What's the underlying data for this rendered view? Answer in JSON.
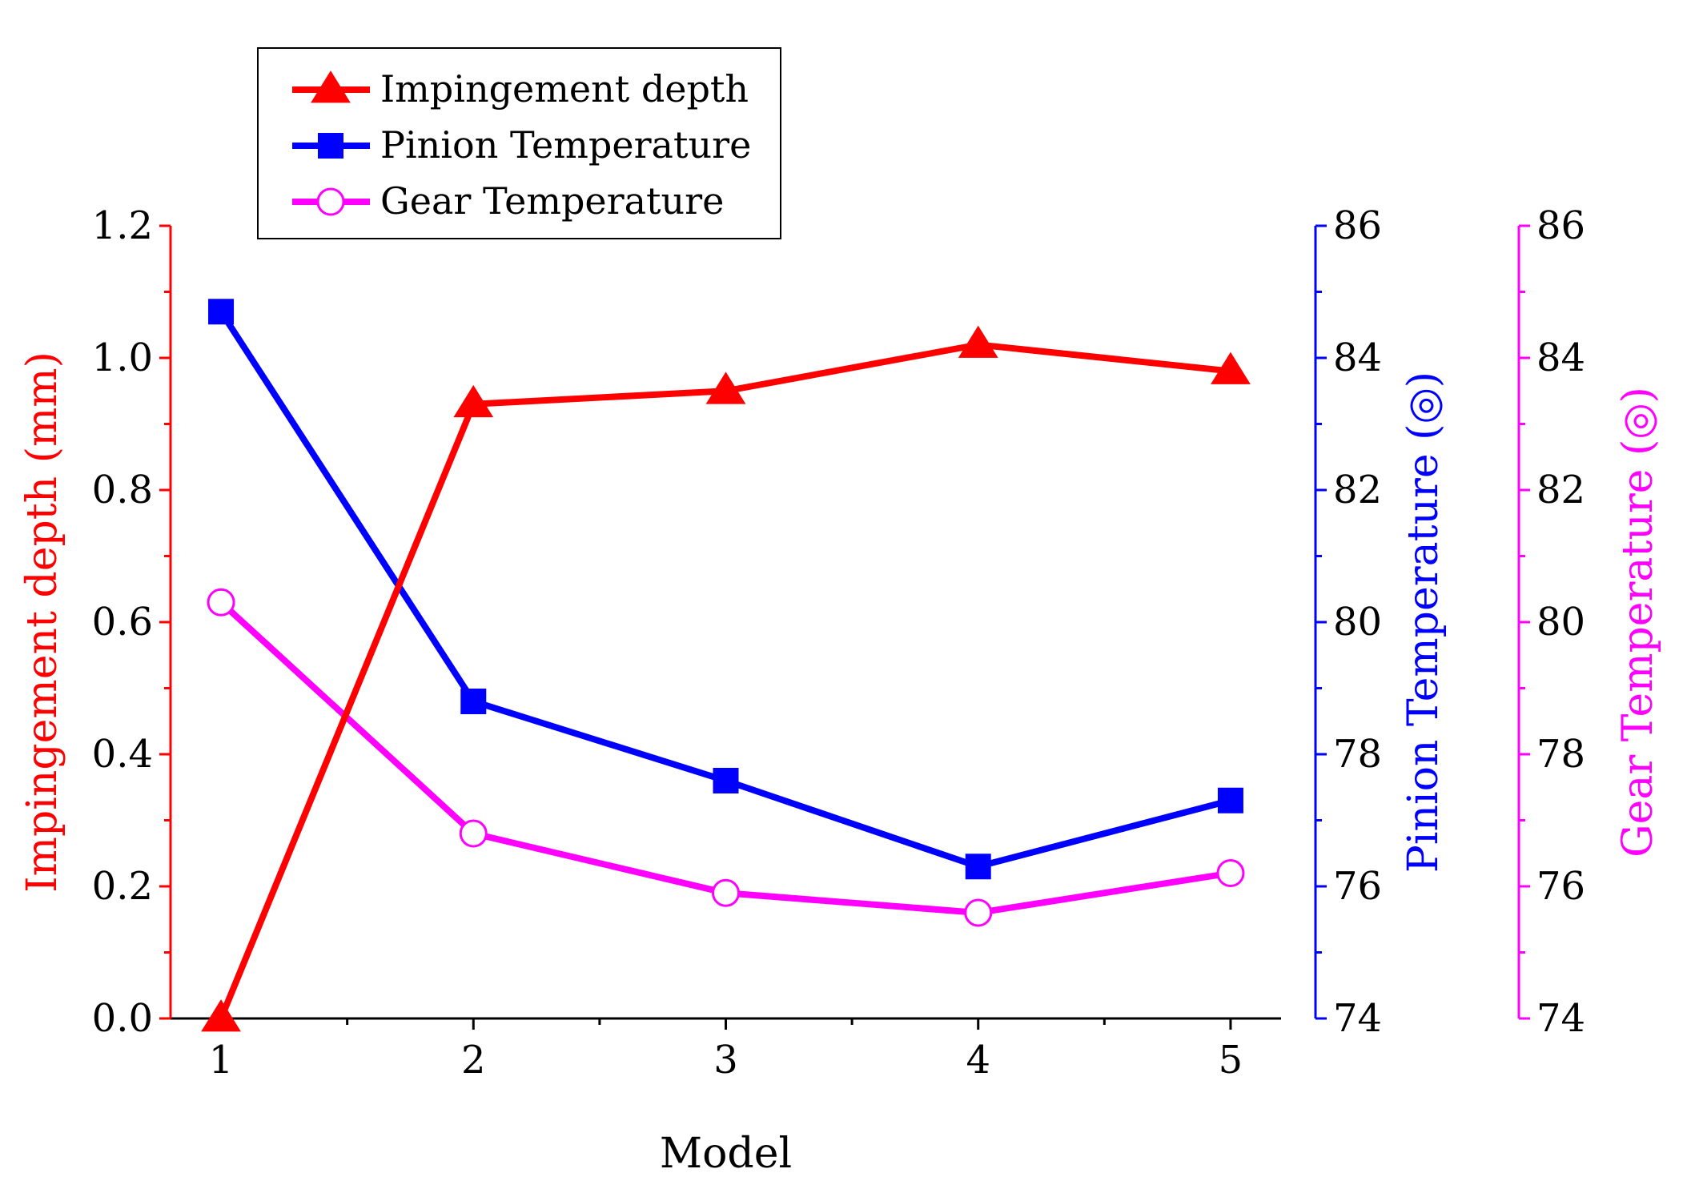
{
  "chart_data": {
    "type": "line",
    "x": [
      1,
      2,
      3,
      4,
      5
    ],
    "xlabel": "Model",
    "xlim": [
      0.8,
      5.2
    ],
    "xticks": [
      1,
      2,
      3,
      4,
      5
    ],
    "series": [
      {
        "name": "Impingement depth",
        "axis": "left",
        "color": "#ff0000",
        "marker": "triangle-filled",
        "values": [
          0.0,
          0.93,
          0.95,
          1.02,
          0.98
        ]
      },
      {
        "name": "Pinion Temperature",
        "axis": "right1",
        "color": "#0000ff",
        "marker": "square-filled",
        "values": [
          84.7,
          78.8,
          77.6,
          76.3,
          77.3
        ]
      },
      {
        "name": "Gear Temperature",
        "axis": "right2",
        "color": "#ff00ff",
        "marker": "circle-open",
        "values": [
          80.3,
          76.8,
          75.9,
          75.6,
          76.2
        ]
      }
    ],
    "axes": {
      "left": {
        "label": "Impingement depth (mm)",
        "ylim": [
          0.0,
          1.2
        ],
        "ticks": [
          "0.0",
          "0.2",
          "0.4",
          "0.6",
          "0.8",
          "1.0",
          "1.2"
        ],
        "color": "#ff0000"
      },
      "right1": {
        "label": "Pinion Temperature (◎)",
        "ylim": [
          74,
          86
        ],
        "ticks": [
          "74",
          "76",
          "78",
          "80",
          "82",
          "84",
          "86"
        ],
        "color": "#0000ff"
      },
      "right2": {
        "label": "Gear Temperature (◎)",
        "ylim": [
          74,
          86
        ],
        "ticks": [
          "74",
          "76",
          "78",
          "80",
          "82",
          "84",
          "86"
        ],
        "color": "#ff00ff"
      }
    },
    "legend": {
      "placement": "top-left",
      "entries": [
        "Impingement depth",
        "Pinion Temperature",
        "Gear Temperature"
      ]
    },
    "grid": false
  }
}
